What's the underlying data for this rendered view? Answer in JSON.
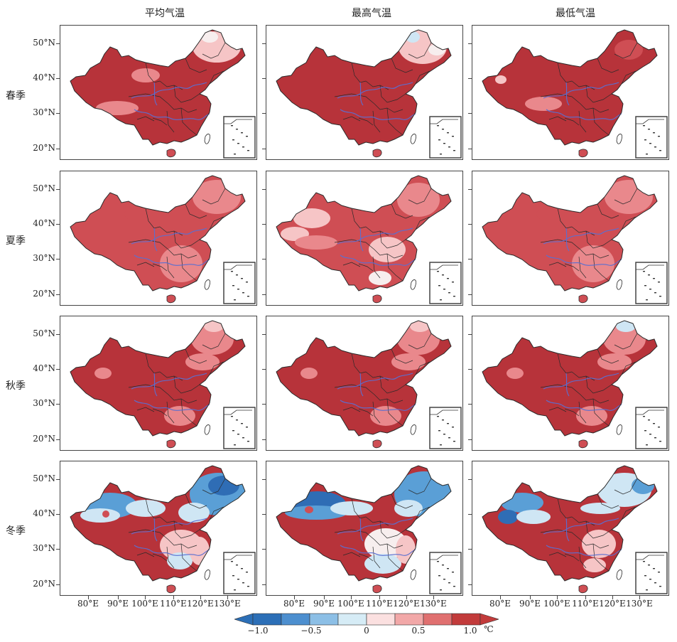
{
  "columns": [
    "平均气温",
    "最高气温",
    "最低气温"
  ],
  "rows": [
    "春季",
    "夏季",
    "秋季",
    "冬季"
  ],
  "lat_labels": [
    "50°N",
    "40°N",
    "30°N",
    "20°N"
  ],
  "lon_labels": [
    "80°E",
    "90°E",
    "100°E",
    "110°E",
    "120°E",
    "130°E"
  ],
  "colorbar": {
    "ticks": [
      "−1.0",
      "−0.5",
      "0",
      "0.5",
      "1.0"
    ],
    "unit": "℃",
    "colors": [
      "#2c6fb7",
      "#4d8fcf",
      "#8cbfe6",
      "#d6ecf6",
      "#fbe0e0",
      "#f2a8a8",
      "#e07070",
      "#c23b3b"
    ]
  },
  "palette": {
    "dark_red": "#b7333a",
    "red": "#cf4e54",
    "pink": "#e9888c",
    "light_pink": "#f6c5c6",
    "white": "#f7eeee",
    "light_blue": "#cfe6f4",
    "blue": "#5a9fd6",
    "dark_blue": "#2f6db5",
    "river": "#5a6fd1",
    "border": "#2a2a2a"
  }
}
